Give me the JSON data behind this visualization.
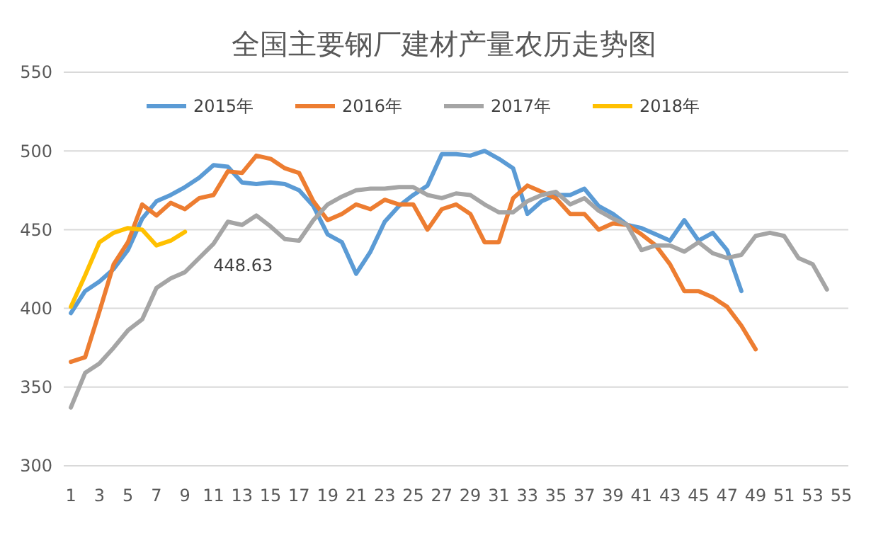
{
  "chart_data": {
    "type": "line",
    "title": "全国主要钢厂建材产量农历走势图",
    "xlim": [
      0.5,
      55.5
    ],
    "xticks": [
      1,
      3,
      5,
      7,
      9,
      11,
      13,
      15,
      17,
      19,
      21,
      23,
      25,
      27,
      29,
      31,
      33,
      35,
      37,
      39,
      41,
      43,
      45,
      47,
      49,
      51,
      53,
      55
    ],
    "ylim": [
      300,
      550
    ],
    "yticks": [
      300,
      350,
      400,
      450,
      500,
      550
    ],
    "grid": "y",
    "legend": "top",
    "marker": "none",
    "line_style": "solid",
    "annotations": [
      {
        "text": "448.63",
        "x": 9,
        "y": 448.63
      }
    ],
    "series": [
      {
        "name": "2015年",
        "color": "#5b9bd5",
        "x": [
          1,
          2,
          3,
          4,
          5,
          6,
          7,
          8,
          9,
          10,
          11,
          12,
          13,
          14,
          15,
          16,
          17,
          18,
          19,
          20,
          21,
          22,
          23,
          24,
          25,
          26,
          27,
          28,
          29,
          30,
          31,
          32,
          33,
          34,
          35,
          36,
          37,
          38,
          39,
          40,
          41,
          42,
          43,
          44,
          45,
          46,
          47,
          48
        ],
        "values": [
          397,
          411,
          417,
          425,
          437,
          457,
          468,
          472,
          477,
          483,
          491,
          490,
          480,
          479,
          480,
          479,
          475,
          465,
          447,
          442,
          422,
          436,
          455,
          465,
          472,
          478,
          498,
          498,
          497,
          500,
          495,
          489,
          460,
          468,
          472,
          472,
          476,
          465,
          460,
          453,
          451,
          447,
          443,
          456,
          443,
          448,
          437,
          411
        ]
      },
      {
        "name": "2016年",
        "color": "#ed7d31",
        "x": [
          1,
          2,
          3,
          4,
          5,
          6,
          7,
          8,
          9,
          10,
          11,
          12,
          13,
          14,
          15,
          16,
          17,
          18,
          19,
          20,
          21,
          22,
          23,
          24,
          25,
          26,
          27,
          28,
          29,
          30,
          31,
          32,
          33,
          34,
          35,
          36,
          37,
          38,
          39,
          40,
          41,
          42,
          43,
          44,
          45,
          46,
          47,
          48,
          49
        ],
        "values": [
          366,
          369,
          398,
          428,
          442,
          466,
          459,
          467,
          463,
          470,
          472,
          487,
          486,
          497,
          495,
          489,
          486,
          468,
          456,
          460,
          466,
          463,
          469,
          466,
          466,
          450,
          463,
          466,
          460,
          442,
          442,
          470,
          478,
          474,
          470,
          460,
          460,
          450,
          454,
          453,
          447,
          440,
          428,
          411,
          411,
          407,
          401,
          389,
          374
        ]
      },
      {
        "name": "2017年",
        "color": "#a5a5a5",
        "x": [
          1,
          2,
          3,
          4,
          5,
          6,
          7,
          8,
          9,
          10,
          11,
          12,
          13,
          14,
          15,
          16,
          17,
          18,
          19,
          20,
          21,
          22,
          23,
          24,
          25,
          26,
          27,
          28,
          29,
          30,
          31,
          32,
          33,
          34,
          35,
          36,
          37,
          38,
          39,
          40,
          41,
          42,
          43,
          44,
          45,
          46,
          47,
          48,
          49,
          50,
          51,
          52,
          53,
          54
        ],
        "values": [
          337,
          359,
          365,
          375,
          386,
          393,
          413,
          419,
          423,
          432,
          441,
          455,
          453,
          459,
          452,
          444,
          443,
          456,
          466,
          471,
          475,
          476,
          476,
          477,
          477,
          472,
          470,
          473,
          472,
          466,
          461,
          461,
          468,
          472,
          474,
          466,
          470,
          462,
          457,
          453,
          437,
          440,
          440,
          436,
          442,
          435,
          432,
          434,
          446,
          448,
          446,
          432,
          428,
          412
        ]
      },
      {
        "name": "2018年",
        "color": "#ffc000",
        "x": [
          1,
          2,
          3,
          4,
          5,
          6,
          7,
          8,
          9
        ],
        "values": [
          401,
          421,
          442,
          448,
          451,
          450,
          440,
          443,
          448.63
        ]
      }
    ]
  }
}
